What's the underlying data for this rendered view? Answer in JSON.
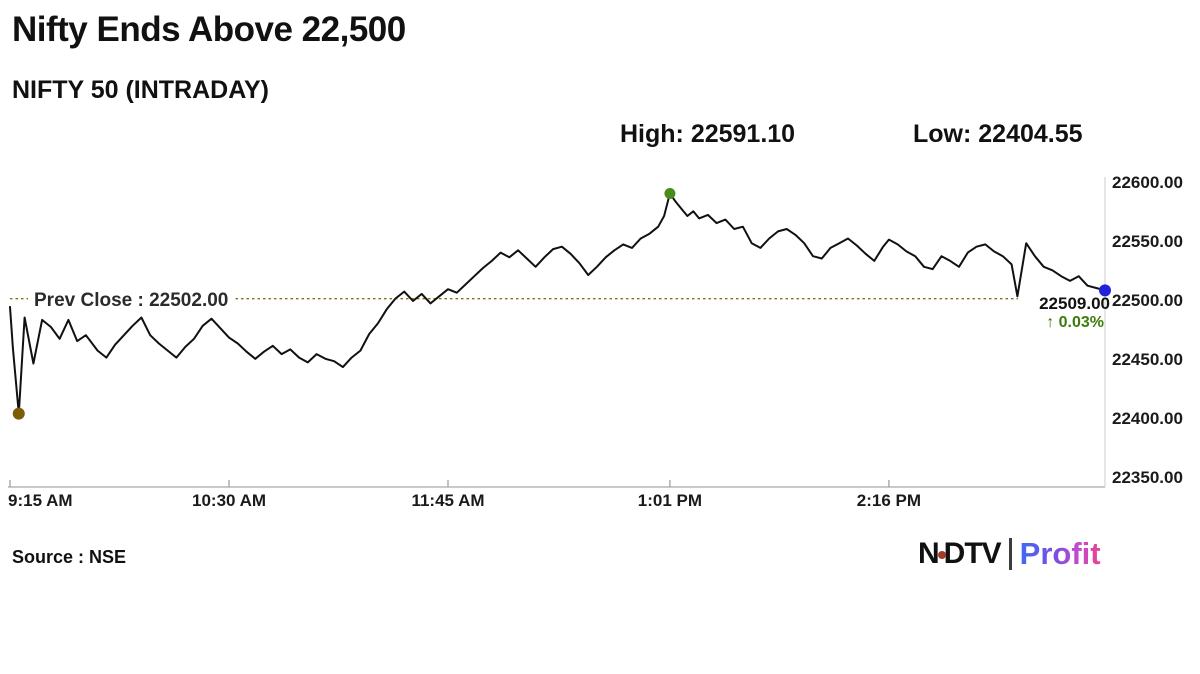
{
  "header": {
    "title": "Nifty Ends Above 22,500",
    "subtitle": "NIFTY 50 (INTRADAY)"
  },
  "stats": {
    "high_label": "High: 22591.10",
    "low_label": "Low: 22404.55"
  },
  "prev_close_label": "Prev Close : 22502.00",
  "last_quote": {
    "price": "22509.00",
    "change": "↑ 0.03%",
    "change_color": "#3a7d0a"
  },
  "source": "Source : NSE",
  "brand": {
    "ndtv_left": "N",
    "ndtv_right": "DTV",
    "profit": "Profit"
  },
  "chart_data": {
    "type": "line",
    "title": "NIFTY 50 (INTRADAY)",
    "xlabel": "",
    "ylabel": "",
    "grid": false,
    "line_color": "#111111",
    "axis_color": "#b9b9b9",
    "x_axis": {
      "start_minute": 0,
      "end_minute": 375,
      "ticks": [
        {
          "label": "9:15 AM",
          "minute": 0
        },
        {
          "label": "10:30 AM",
          "minute": 75
        },
        {
          "label": "11:45 AM",
          "minute": 150
        },
        {
          "label": "1:01 PM",
          "minute": 226
        },
        {
          "label": "2:16 PM",
          "minute": 301
        }
      ]
    },
    "y_axis": {
      "min": 22350,
      "max": 22600,
      "ticks": [
        22600.0,
        22550.0,
        22500.0,
        22450.0,
        22400.0,
        22350.0
      ]
    },
    "prev_close": {
      "value": 22502.0,
      "color": "#8a6d1b"
    },
    "markers": {
      "low": {
        "minute": 3,
        "value": 22404.55,
        "color": "#7d5c08"
      },
      "high": {
        "minute": 226,
        "value": 22591.1,
        "color": "#4a8c1c"
      },
      "last": {
        "minute": 375,
        "value": 22509.0,
        "color": "#2222dd"
      }
    },
    "series": [
      {
        "name": "NIFTY 50",
        "points": [
          [
            0,
            22495
          ],
          [
            1,
            22460
          ],
          [
            3,
            22404.55
          ],
          [
            5,
            22486
          ],
          [
            8,
            22447
          ],
          [
            11,
            22484
          ],
          [
            14,
            22478
          ],
          [
            17,
            22468
          ],
          [
            20,
            22484
          ],
          [
            23,
            22466
          ],
          [
            26,
            22471
          ],
          [
            30,
            22458
          ],
          [
            33,
            22452
          ],
          [
            36,
            22463
          ],
          [
            39,
            22471
          ],
          [
            42,
            22479
          ],
          [
            45,
            22486
          ],
          [
            48,
            22471
          ],
          [
            51,
            22464
          ],
          [
            54,
            22458
          ],
          [
            57,
            22452
          ],
          [
            60,
            22461
          ],
          [
            63,
            22468
          ],
          [
            66,
            22479
          ],
          [
            69,
            22485
          ],
          [
            72,
            22477
          ],
          [
            75,
            22469
          ],
          [
            78,
            22464
          ],
          [
            81,
            22457
          ],
          [
            84,
            22451
          ],
          [
            87,
            22457
          ],
          [
            90,
            22462
          ],
          [
            93,
            22455
          ],
          [
            96,
            22459
          ],
          [
            99,
            22452
          ],
          [
            102,
            22448
          ],
          [
            105,
            22455
          ],
          [
            108,
            22451
          ],
          [
            111,
            22449
          ],
          [
            114,
            22444
          ],
          [
            117,
            22452
          ],
          [
            120,
            22458
          ],
          [
            123,
            22472
          ],
          [
            126,
            22481
          ],
          [
            129,
            22493
          ],
          [
            132,
            22502
          ],
          [
            135,
            22508
          ],
          [
            138,
            22500
          ],
          [
            141,
            22506
          ],
          [
            144,
            22498
          ],
          [
            147,
            22504
          ],
          [
            150,
            22510
          ],
          [
            153,
            22507
          ],
          [
            156,
            22514
          ],
          [
            159,
            22521
          ],
          [
            162,
            22528
          ],
          [
            165,
            22534
          ],
          [
            168,
            22541
          ],
          [
            171,
            22537
          ],
          [
            174,
            22543
          ],
          [
            177,
            22536
          ],
          [
            180,
            22529
          ],
          [
            183,
            22537
          ],
          [
            186,
            22544
          ],
          [
            189,
            22546
          ],
          [
            192,
            22540
          ],
          [
            195,
            22532
          ],
          [
            198,
            22522
          ],
          [
            201,
            22529
          ],
          [
            204,
            22537
          ],
          [
            207,
            22543
          ],
          [
            210,
            22548
          ],
          [
            213,
            22545
          ],
          [
            216,
            22553
          ],
          [
            219,
            22557
          ],
          [
            222,
            22563
          ],
          [
            224,
            22572
          ],
          [
            226,
            22591.1
          ],
          [
            228,
            22584
          ],
          [
            230,
            22578
          ],
          [
            232,
            22572
          ],
          [
            234,
            22576
          ],
          [
            236,
            22570
          ],
          [
            239,
            22573
          ],
          [
            242,
            22566
          ],
          [
            245,
            22569
          ],
          [
            248,
            22561
          ],
          [
            251,
            22563
          ],
          [
            254,
            22549
          ],
          [
            257,
            22545
          ],
          [
            260,
            22553
          ],
          [
            263,
            22559
          ],
          [
            266,
            22561
          ],
          [
            269,
            22556
          ],
          [
            272,
            22549
          ],
          [
            275,
            22538
          ],
          [
            278,
            22536
          ],
          [
            281,
            22545
          ],
          [
            284,
            22549
          ],
          [
            287,
            22553
          ],
          [
            290,
            22547
          ],
          [
            293,
            22540
          ],
          [
            296,
            22534
          ],
          [
            299,
            22546
          ],
          [
            301,
            22552
          ],
          [
            304,
            22548
          ],
          [
            307,
            22542
          ],
          [
            310,
            22538
          ],
          [
            313,
            22529
          ],
          [
            316,
            22527
          ],
          [
            319,
            22538
          ],
          [
            322,
            22534
          ],
          [
            325,
            22529
          ],
          [
            328,
            22541
          ],
          [
            331,
            22546
          ],
          [
            334,
            22548
          ],
          [
            337,
            22542
          ],
          [
            340,
            22538
          ],
          [
            343,
            22531
          ],
          [
            345,
            22504
          ],
          [
            348,
            22549
          ],
          [
            351,
            22538
          ],
          [
            354,
            22529
          ],
          [
            357,
            22526
          ],
          [
            360,
            22521
          ],
          [
            363,
            22517
          ],
          [
            366,
            22521
          ],
          [
            369,
            22513
          ],
          [
            372,
            22511
          ],
          [
            375,
            22509
          ]
        ]
      }
    ]
  }
}
